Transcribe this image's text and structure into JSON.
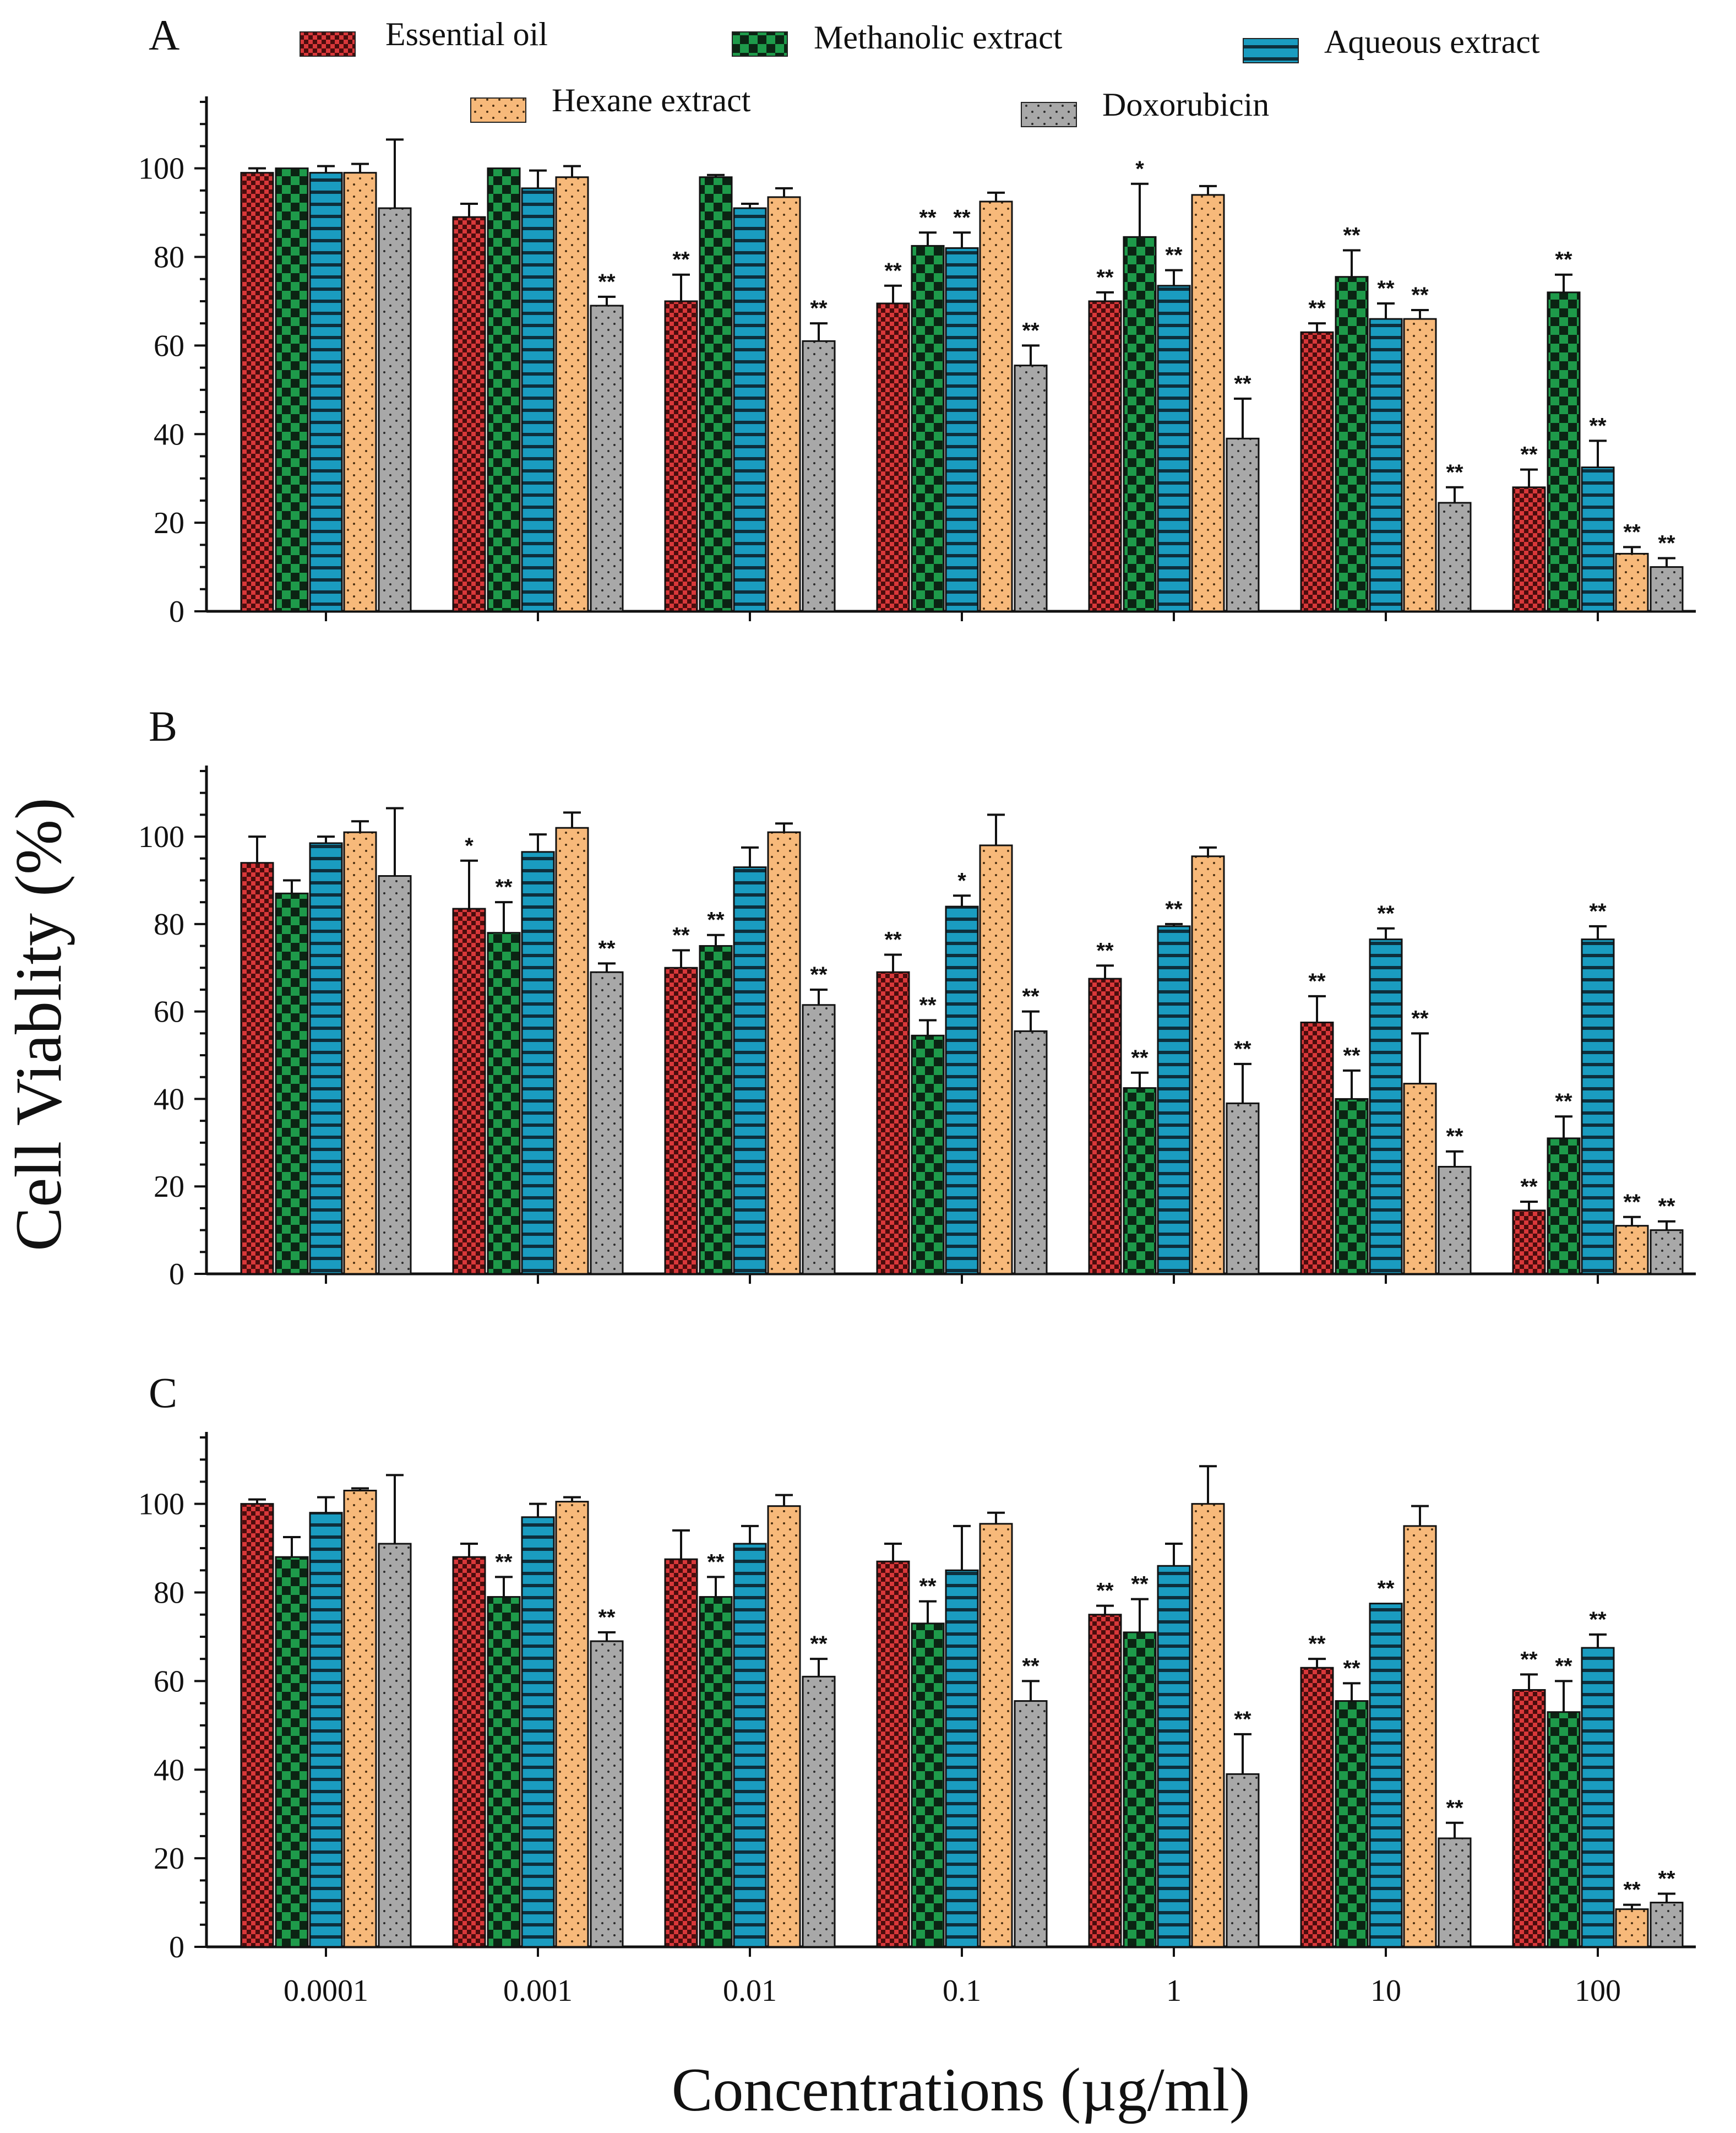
{
  "chart_data": {
    "type": "bar",
    "ylabel": "Cell Viablity (%)",
    "xlabel": "Concentrations (µg/ml)",
    "categories": [
      "0.0001",
      "0.001",
      "0.01",
      "0.1",
      "1",
      "10",
      "100"
    ],
    "ylim": [
      0,
      115
    ],
    "yticks": [
      0,
      20,
      40,
      60,
      80,
      100
    ],
    "legend": [
      {
        "name": "Essential oil",
        "color": "#d9383a",
        "pattern": "checker-small"
      },
      {
        "name": "Methanolic extract",
        "color": "#1e9a4a",
        "pattern": "checker-large"
      },
      {
        "name": "Aqueous extract",
        "color": "#1a9cc0",
        "pattern": "horizontal-stripes"
      },
      {
        "name": "Hexane extract",
        "color": "#f7b97a",
        "pattern": "dots"
      },
      {
        "name": "Doxorubicin",
        "color": "#a8a8a8",
        "pattern": "dots"
      }
    ],
    "panels": [
      {
        "label": "A",
        "series": [
          {
            "name": "Essential oil",
            "values": [
              99,
              89,
              70,
              69.5,
              70,
              63,
              28
            ],
            "errors": [
              1,
              3,
              6,
              4,
              2,
              2,
              4
            ],
            "sig": [
              "",
              "",
              "**",
              "**",
              "**",
              "**",
              "**"
            ]
          },
          {
            "name": "Methanolic extract",
            "values": [
              100,
              100,
              98,
              82.5,
              84.5,
              75.5,
              72
            ],
            "errors": [
              0,
              0,
              0.5,
              3,
              12,
              6,
              4
            ],
            "sig": [
              "",
              "",
              "",
              "**",
              "*",
              "**",
              "**"
            ]
          },
          {
            "name": "Aqueous extract",
            "values": [
              99,
              95.5,
              91,
              82,
              73.5,
              66,
              32.5
            ],
            "errors": [
              1.5,
              4,
              1,
              3.5,
              3.5,
              3.5,
              6
            ],
            "sig": [
              "",
              "",
              "",
              "**",
              "**",
              "**",
              "**"
            ]
          },
          {
            "name": "Hexane extract",
            "values": [
              99,
              98,
              93.5,
              92.5,
              94,
              66,
              13
            ],
            "errors": [
              2,
              2.5,
              2,
              2,
              2,
              2,
              1.5
            ],
            "sig": [
              "",
              "",
              "",
              "",
              "",
              "**",
              "**"
            ]
          },
          {
            "name": "Doxorubicin",
            "values": [
              91,
              69,
              61,
              55.5,
              39,
              24.5,
              10
            ],
            "errors": [
              15.5,
              2,
              4,
              4.5,
              9,
              3.5,
              2
            ],
            "sig": [
              "",
              "**",
              "**",
              "**",
              "**",
              "**",
              "**"
            ]
          }
        ]
      },
      {
        "label": "B",
        "series": [
          {
            "name": "Essential oil",
            "values": [
              94,
              83.5,
              70,
              69,
              67.5,
              57.5,
              14.5
            ],
            "errors": [
              6,
              11,
              4,
              4,
              3,
              6,
              2
            ],
            "sig": [
              "",
              "*",
              "**",
              "**",
              "**",
              "**",
              "**"
            ]
          },
          {
            "name": "Methanolic extract",
            "values": [
              87,
              78,
              75,
              54.5,
              42.5,
              40,
              31
            ],
            "errors": [
              3,
              7,
              2.5,
              3.5,
              3.5,
              6.5,
              5
            ],
            "sig": [
              "",
              "**",
              "**",
              "**",
              "**",
              "**",
              "**"
            ]
          },
          {
            "name": "Aqueous extract",
            "values": [
              98.5,
              96.5,
              93,
              84,
              79.5,
              76.5,
              76.5
            ],
            "errors": [
              1.5,
              4,
              4.5,
              2.5,
              0.5,
              2.5,
              3
            ],
            "sig": [
              "",
              "",
              "",
              "*",
              "**",
              "**",
              "**"
            ]
          },
          {
            "name": "Hexane extract",
            "values": [
              101,
              102,
              101,
              98,
              95.5,
              43.5,
              11
            ],
            "errors": [
              2.5,
              3.5,
              2,
              7,
              2,
              11.5,
              2
            ],
            "sig": [
              "",
              "",
              "",
              "",
              "",
              "**",
              "**"
            ]
          },
          {
            "name": "Doxorubicin",
            "values": [
              91,
              69,
              61.5,
              55.5,
              39,
              24.5,
              10
            ],
            "errors": [
              15.5,
              2,
              3.5,
              4.5,
              9,
              3.5,
              2
            ],
            "sig": [
              "",
              "**",
              "**",
              "**",
              "**",
              "**",
              "**"
            ]
          }
        ]
      },
      {
        "label": "C",
        "series": [
          {
            "name": "Essential oil",
            "values": [
              100,
              88,
              87.5,
              87,
              75,
              63,
              58
            ],
            "errors": [
              1,
              3,
              6.5,
              4,
              2,
              2,
              3.5
            ],
            "sig": [
              "",
              "",
              "",
              "",
              "**",
              "**",
              "**"
            ]
          },
          {
            "name": "Methanolic extract",
            "values": [
              88,
              79,
              79,
              73,
              71,
              55.5,
              53
            ],
            "errors": [
              4.5,
              4.5,
              4.5,
              5,
              7.5,
              4,
              7
            ],
            "sig": [
              "",
              "**",
              "**",
              "**",
              "**",
              "**",
              "**"
            ]
          },
          {
            "name": "Aqueous extract",
            "values": [
              98,
              97,
              91,
              85,
              86,
              77.5,
              67.5
            ],
            "errors": [
              3.5,
              3,
              4,
              10,
              5,
              0,
              3
            ],
            "sig": [
              "",
              "",
              "",
              "",
              "",
              "**",
              "**"
            ]
          },
          {
            "name": "Hexane extract",
            "values": [
              103,
              100.5,
              99.5,
              95.5,
              100,
              95,
              8.5
            ],
            "errors": [
              0.5,
              1,
              2.5,
              2.5,
              8.5,
              4.5,
              1
            ],
            "sig": [
              "",
              "",
              "",
              "",
              "",
              "",
              "**"
            ]
          },
          {
            "name": "Doxorubicin",
            "values": [
              91,
              69,
              61,
              55.5,
              39,
              24.5,
              10
            ],
            "errors": [
              15.5,
              2,
              4,
              4.5,
              9,
              3.5,
              2
            ],
            "sig": [
              "",
              "**",
              "**",
              "**",
              "**",
              "**",
              "**"
            ]
          }
        ]
      }
    ]
  }
}
